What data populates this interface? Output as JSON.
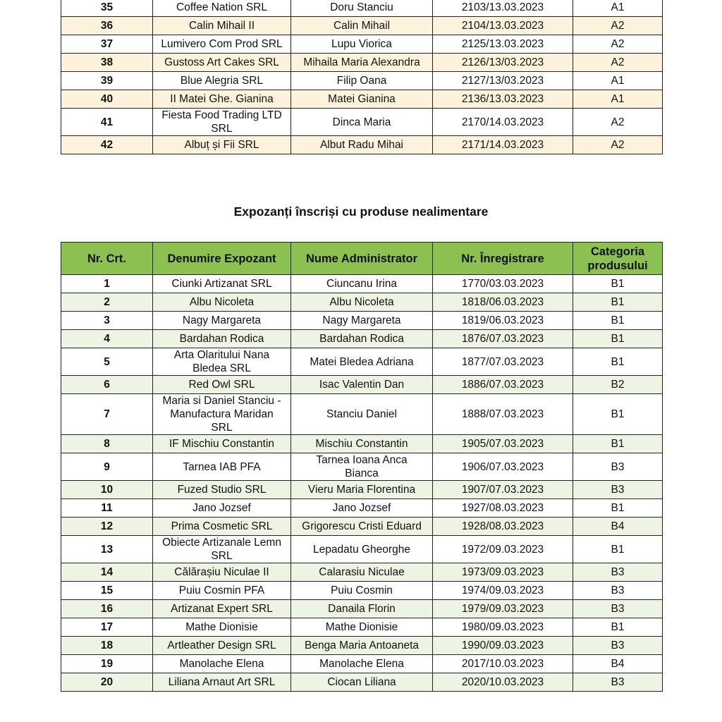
{
  "food_table": {
    "rows": [
      [
        "35",
        "Coffee Nation SRL",
        "Doru Stanciu",
        "2103/13.03.2023",
        "A1"
      ],
      [
        "36",
        "Calin Mihail II",
        "Calin Mihail",
        "2104/13.03.2023",
        "A2"
      ],
      [
        "37",
        "Lumivero Com Prod SRL",
        "Lupu Viorica",
        "2125/13.03.2023",
        "A2"
      ],
      [
        "38",
        "Gustoss Art Cakes SRL",
        "Mihaila Maria Alexandra",
        "2126/13/03.2023",
        "A2"
      ],
      [
        "39",
        "Blue Alegria SRL",
        "Filip Oana",
        "2127/13/03.2023",
        "A1"
      ],
      [
        "40",
        "II Matei Ghe. Gianina",
        "Matei Gianina",
        "2136/13.03.2023",
        "A1"
      ],
      [
        "41",
        "Fiesta Food Trading LTD\nSRL",
        "Dinca Maria",
        "2170/14.03.2023",
        "A2"
      ],
      [
        "42",
        "Albuț și Fii SRL",
        "Albut Radu Mihai",
        "2171/14.03.2023",
        "A2"
      ]
    ]
  },
  "nonfood_section": {
    "title": "Expozanți înscriși cu produse nealimentare",
    "headers": [
      "Nr. Crt.",
      "Denumire Expozant",
      "Nume Administrator",
      "Nr. Înregistrare",
      "Categoria\nprodusului"
    ],
    "rows": [
      [
        "1",
        "Ciunki Artizanat SRL",
        "Ciuncanu Irina",
        "1770/03.03.2023",
        "B1"
      ],
      [
        "2",
        "Albu Nicoleta",
        "Albu Nicoleta",
        "1818/06.03.2023",
        "B1"
      ],
      [
        "3",
        "Nagy Margareta",
        "Nagy Margareta",
        "1819/06.03.2023",
        "B1"
      ],
      [
        "4",
        "Bardahan Rodica",
        "Bardahan Rodica",
        "1876/07.03.2023",
        "B1"
      ],
      [
        "5",
        "Arta Olaritului Nana\nBledea SRL",
        "Matei Bledea Adriana",
        "1877/07.03.2023",
        "B1"
      ],
      [
        "6",
        "Red Owl SRL",
        "Isac Valentin Dan",
        "1886/07.03.2023",
        "B2"
      ],
      [
        "7",
        "Maria si Daniel Stanciu -\nManufactura Maridan\nSRL",
        "Stanciu Daniel",
        "1888/07.03.2023",
        "B1"
      ],
      [
        "8",
        "IF Mischiu Constantin",
        "Mischiu Constantin",
        "1905/07.03.2023",
        "B1"
      ],
      [
        "9",
        "Tarnea IAB PFA",
        "Tarnea Ioana Anca\nBianca",
        "1906/07.03.2023",
        "B3"
      ],
      [
        "10",
        "Fuzed Studio SRL",
        "Vieru Maria Florentina",
        "1907/07.03.2023",
        "B3"
      ],
      [
        "11",
        "Jano Jozsef",
        "Jano Jozsef",
        "1927/08.03.2023",
        "B1"
      ],
      [
        "12",
        "Prima Cosmetic SRL",
        "Grigorescu Cristi Eduard",
        "1928/08.03.2023",
        "B4"
      ],
      [
        "13",
        "Obiecte Artizanale Lemn\nSRL",
        "Lepadatu Gheorghe",
        "1972/09.03.2023",
        "B1"
      ],
      [
        "14",
        "Călărașiu Niculae II",
        "Calarasiu Niculae",
        "1973/09.03.2023",
        "B3"
      ],
      [
        "15",
        "Puiu Cosmin PFA",
        "Puiu Cosmin",
        "1974/09.03.2023",
        "B3"
      ],
      [
        "16",
        "Artizanat Expert SRL",
        "Danaila Florin",
        "1979/09.03.2023",
        "B3"
      ],
      [
        "17",
        "Mathe Dionisie",
        "Mathe Dionisie",
        "1980/09.03.2023",
        "B1"
      ],
      [
        "18",
        "Artleather Design SRL",
        "Benga Maria Antoaneta",
        "1990/09.03.2023",
        "B3"
      ],
      [
        "19",
        "Manolache Elena",
        "Manolache Elena",
        "2017/10.03.2023",
        "B4"
      ],
      [
        "20",
        "Liliana Arnaut Art SRL",
        "Ciocan Liliana",
        "2020/10.03.2023",
        "B3"
      ]
    ]
  },
  "colors": {
    "header_green": "#8cc152",
    "food_stripe": "#fdf3dd",
    "nonfood_stripe": "#eef4e3"
  }
}
